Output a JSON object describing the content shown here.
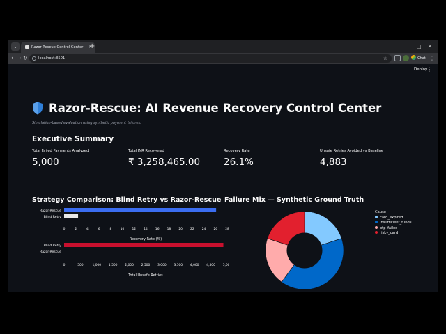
{
  "browser": {
    "tab_title": "Razor-Rescue Control Center",
    "tab_close": "×",
    "new_tab": "+",
    "url": "localhost:8501",
    "chat_label": "Chat",
    "back": "←",
    "forward": "→",
    "reload": "↻",
    "minimize": "–",
    "maximize": "□",
    "close": "✕",
    "star": "☆",
    "menu": "⋮",
    "tab_dropdown": "⌄"
  },
  "app": {
    "deploy_label": "Deploy",
    "menu_label": "⋮",
    "title": "Razor-Rescue: AI Revenue Recovery Control Center",
    "caption": "Simulation-based evaluation using synthetic payment failures.",
    "section_title": "Executive Summary",
    "metrics": [
      {
        "label": "Total Failed Payments Analyzed",
        "value": "5,000"
      },
      {
        "label": "Total INR Recovered",
        "value": "₹ 3,258,465.00"
      },
      {
        "label": "Recovery Rate",
        "value": "26.1%"
      },
      {
        "label": "Unsafe Retries Avoided vs Baseline",
        "value": "4,883"
      }
    ]
  },
  "strategy_title": "Strategy Comparison: Blind Retry vs Razor-Rescue",
  "failure_title": "Failure Mix — Synthetic Ground Truth",
  "legend_title": "Cause",
  "chart_data": [
    {
      "type": "bar",
      "orientation": "horizontal",
      "categories": [
        "Razor-Rescue",
        "Blind Retry"
      ],
      "values": [
        26.1,
        2.4
      ],
      "colors": [
        "#3b6df0",
        "#e8e8e8"
      ],
      "xlabel": "Recovery Rate (%)",
      "xlim": [
        0,
        28
      ],
      "ticks": [
        0,
        2,
        4,
        6,
        8,
        10,
        12,
        14,
        16,
        18,
        20,
        22,
        24,
        26,
        28
      ]
    },
    {
      "type": "bar",
      "orientation": "horizontal",
      "categories": [
        "Blind Retry",
        "Razor-Rescue"
      ],
      "values": [
        4883,
        0
      ],
      "colors": [
        "#c8102e",
        "#c8102e"
      ],
      "xlabel": "Total Unsafe Retries",
      "xlim": [
        0,
        5000
      ],
      "ticks": [
        0,
        500,
        1000,
        1500,
        2000,
        2500,
        3000,
        3500,
        4000,
        4500,
        5000
      ],
      "tick_labels": [
        "0",
        "500",
        "1,000",
        "1,500",
        "2,000",
        "2,500",
        "3,000",
        "3,500",
        "4,000",
        "4,500",
        "5,000"
      ]
    },
    {
      "type": "pie",
      "hole": 0.45,
      "labels": [
        "card_expired",
        "insufficient_funds",
        "otp_failed",
        "risky_card"
      ],
      "values": [
        20,
        40,
        20,
        20
      ],
      "colors": [
        "#83c9ff",
        "#0068c9",
        "#ffabab",
        "#e2202e"
      ]
    }
  ]
}
